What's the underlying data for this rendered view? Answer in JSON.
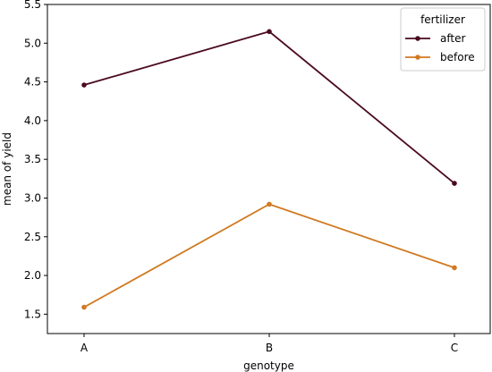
{
  "chart_data": {
    "type": "line",
    "categories": [
      "A",
      "B",
      "C"
    ],
    "xlabel": "genotype",
    "ylabel": "mean of yield",
    "ylim": [
      1.25,
      5.5
    ],
    "yticks": [
      "1.5",
      "2.0",
      "2.5",
      "3.0",
      "3.5",
      "4.0",
      "4.5",
      "5.0",
      "5.5"
    ],
    "grid": false,
    "legend": {
      "title": "fertilizer",
      "placement": "top-right"
    },
    "series": [
      {
        "name": "after",
        "color": "#4a0a1f",
        "values": [
          4.46,
          5.15,
          3.19
        ]
      },
      {
        "name": "before",
        "color": "#d07a22",
        "values": [
          1.59,
          2.92,
          2.1
        ]
      }
    ]
  }
}
